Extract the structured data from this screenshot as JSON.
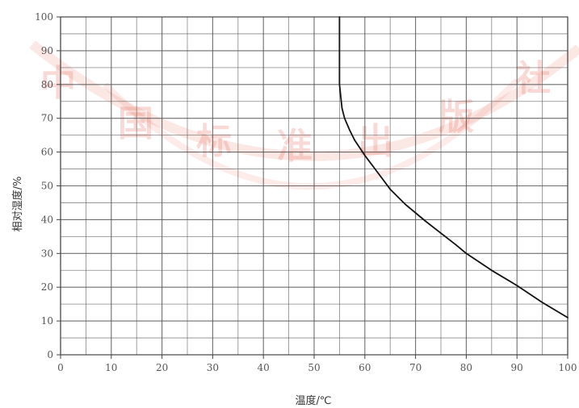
{
  "chart_data": {
    "type": "line",
    "xlabel": "温度/℃",
    "ylabel": "相对湿度/%",
    "xlim": [
      0,
      100
    ],
    "ylim": [
      0,
      100
    ],
    "x_ticks": [
      "0",
      "10",
      "20",
      "30",
      "40",
      "50",
      "60",
      "70",
      "80",
      "90",
      "100"
    ],
    "y_ticks": [
      "0",
      "10",
      "20",
      "30",
      "40",
      "50",
      "60",
      "70",
      "80",
      "90",
      "100"
    ],
    "grid": true,
    "series": [
      {
        "x": [
          55,
          55,
          55,
          55.5,
          56,
          57,
          58,
          60,
          62,
          65,
          68,
          70,
          72,
          75,
          78,
          80,
          85,
          90,
          95,
          100
        ],
        "y": [
          100,
          90,
          80,
          73,
          70,
          66.5,
          63.5,
          59,
          55,
          49,
          44.5,
          42,
          39.5,
          36,
          32.5,
          30,
          25,
          20.5,
          15.5,
          11
        ]
      }
    ],
    "watermark": [
      "中",
      "国",
      "标",
      "准",
      "出",
      "版",
      "社"
    ],
    "colors": {
      "line": "#111111",
      "grid": "#555555",
      "watermark": "#e87a6a"
    }
  }
}
